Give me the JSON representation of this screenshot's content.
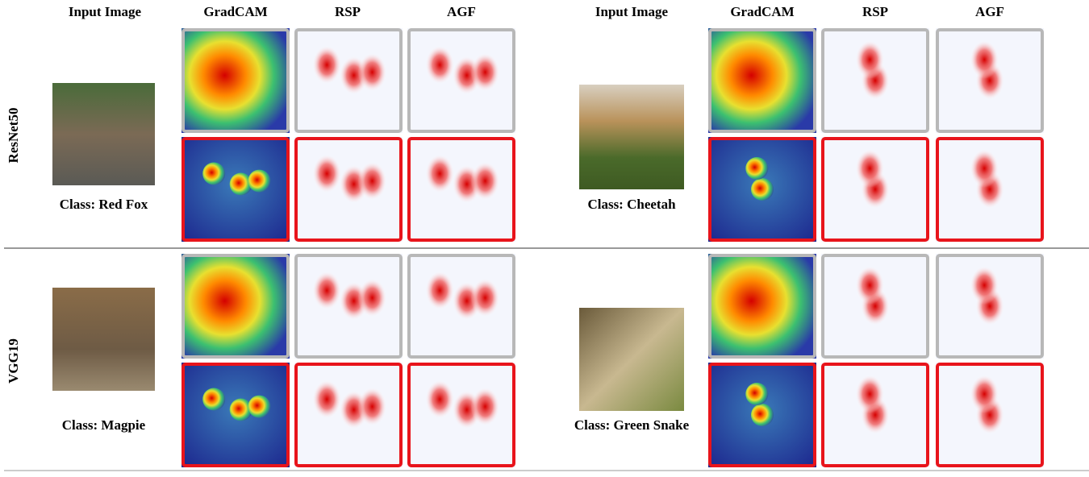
{
  "header_groups": [
    [
      "Input Image",
      "GradCAM",
      "RSP",
      "AGF"
    ],
    [
      "Input Image",
      "GradCAM",
      "RSP",
      "AGF"
    ]
  ],
  "rows": [
    {
      "label": "ResNet50",
      "examples": [
        "Class: Red Fox",
        "Class: Cheetah"
      ]
    },
    {
      "label": "VGG19",
      "examples": [
        "Class: Magpie",
        "Class: Green Snake"
      ]
    }
  ]
}
